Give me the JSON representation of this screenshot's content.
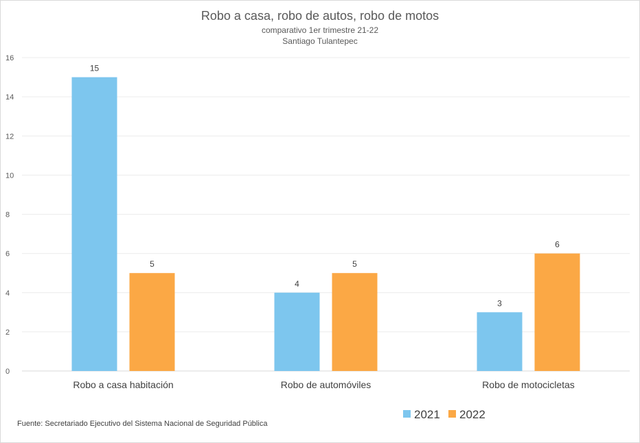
{
  "chart_data": {
    "type": "bar",
    "title": "Robo a casa, robo de autos, robo de motos",
    "subtitle_lines": [
      "comparativo 1er trimestre 21-22",
      "Santiago Tulantepec"
    ],
    "categories": [
      "Robo a casa habitación",
      "Robo de automóviles",
      "Robo de motocicletas"
    ],
    "series": [
      {
        "name": "2021",
        "values": [
          15,
          4,
          3
        ],
        "color": "#7DC6EE"
      },
      {
        "name": "2022",
        "values": [
          5,
          5,
          6
        ],
        "color": "#FBA845"
      }
    ],
    "xlabel": "",
    "ylabel": "",
    "ylim": [
      0,
      16
    ],
    "yticks": [
      0,
      2,
      4,
      6,
      8,
      10,
      12,
      14,
      16
    ],
    "grid": true,
    "legend_position": "bottom-right",
    "data_labels": true
  },
  "footer": {
    "source": "Fuente:  Secretariado Ejecutivo del Sistema Nacional de Seguridad Pública"
  }
}
